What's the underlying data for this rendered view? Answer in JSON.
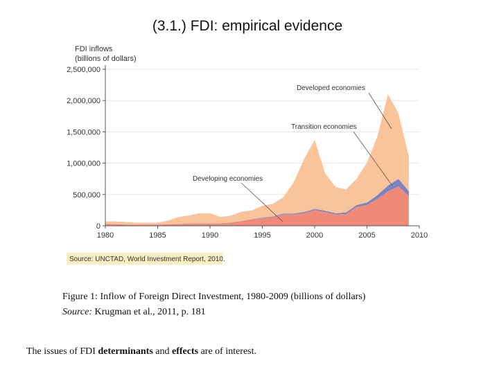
{
  "slide": {
    "title": "(3.1.) FDI: empirical evidence"
  },
  "chart_data": {
    "type": "area",
    "stacked": true,
    "ylabel": [
      "FDI inflows",
      "(billions of dollars)"
    ],
    "xlim": [
      1980,
      2010
    ],
    "ylim": [
      0,
      2500000
    ],
    "x_ticks": [
      "1980",
      "1985",
      "1990",
      "1995",
      "2000",
      "2005",
      "2010"
    ],
    "y_ticks": [
      "0",
      "500,000",
      "1,000,000",
      "1,500,000",
      "2,000,000",
      "2,500,000"
    ],
    "x": [
      1980,
      1981,
      1982,
      1983,
      1984,
      1985,
      1986,
      1987,
      1988,
      1989,
      1990,
      1991,
      1992,
      1993,
      1994,
      1995,
      1996,
      1997,
      1998,
      1999,
      2000,
      2001,
      2002,
      2003,
      2004,
      2005,
      2006,
      2007,
      2008,
      2009
    ],
    "series": [
      {
        "name": "Developing economies",
        "color": "#f08a78",
        "values": [
          30000,
          25000,
          20000,
          20000,
          20000,
          20000,
          25000,
          30000,
          35000,
          40000,
          35000,
          40000,
          50000,
          70000,
          100000,
          120000,
          140000,
          180000,
          180000,
          200000,
          250000,
          220000,
          180000,
          190000,
          300000,
          330000,
          430000,
          550000,
          630000,
          480000
        ]
      },
      {
        "name": "Transition economies",
        "color": "#7b83c2",
        "values": [
          0,
          0,
          0,
          0,
          0,
          0,
          0,
          0,
          0,
          0,
          0,
          0,
          2000,
          5000,
          5000,
          10000,
          10000,
          15000,
          15000,
          20000,
          20000,
          20000,
          20000,
          25000,
          30000,
          40000,
          60000,
          90000,
          120000,
          72000
        ]
      },
      {
        "name": "Developed economies",
        "color": "#f9c49a",
        "values": [
          40000,
          45000,
          40000,
          30000,
          30000,
          30000,
          60000,
          110000,
          130000,
          160000,
          165000,
          100000,
          110000,
          150000,
          140000,
          190000,
          200000,
          260000,
          500000,
          850000,
          1100000,
          600000,
          420000,
          365000,
          420000,
          640000,
          940000,
          1460000,
          1050000,
          560000
        ]
      }
    ],
    "annotations": [
      "Developed economies",
      "Transition economies",
      "Developing economies"
    ],
    "source_note": "Source: UNCTAD, World Investment Report, 2010."
  },
  "caption": {
    "line1": "Figure 1: Inflow of Foreign Direct Investment, 1980-2009 (billions of dollars)",
    "source_label": "Source:",
    "source_text": " Krugman et al., 2011, p. 181"
  },
  "footer": {
    "part1": "The issues of FDI ",
    "bold1": "determinants",
    "part2": " and ",
    "bold2": "effects",
    "part3": " are of interest."
  }
}
